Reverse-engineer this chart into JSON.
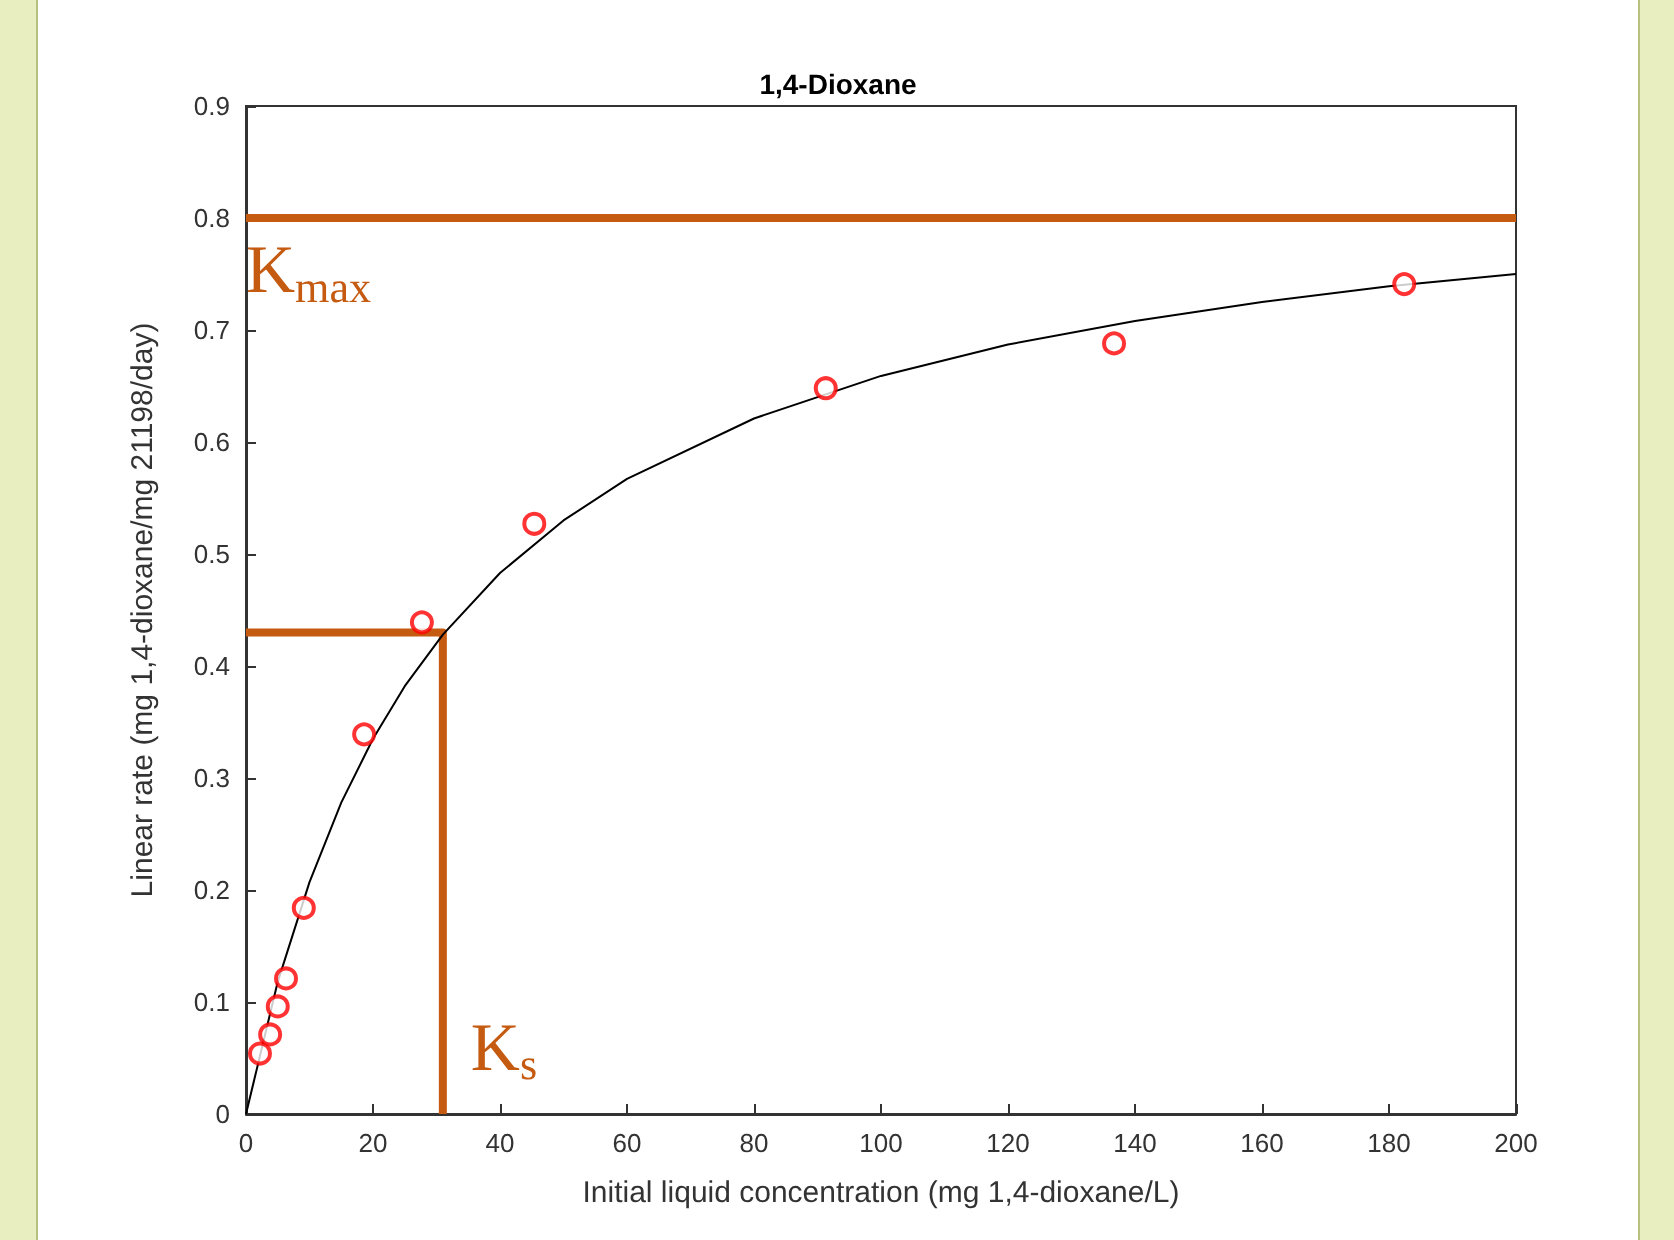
{
  "chart_data": {
    "type": "scatter",
    "title": "1,4-Dioxane",
    "xlabel": "Initial liquid concentration (mg 1,4-dioxane/L)",
    "ylabel": "Linear rate (mg 1,4-dioxane/mg 21198/day)",
    "xlim": [
      0,
      200
    ],
    "xticks": [
      0,
      20,
      40,
      60,
      80,
      100,
      120,
      140,
      160,
      180,
      200
    ],
    "ylim": [
      0,
      0.9
    ],
    "yticks": [
      0,
      0.1,
      0.2,
      0.3,
      0.4,
      0.5,
      0.6,
      0.7,
      0.8,
      0.9
    ],
    "grid": false,
    "series": [
      {
        "marker": "circle",
        "color": "#ff0000",
        "x": [
          2.2,
          3.8,
          5,
          6.3,
          9.1,
          18.6,
          27.7,
          45.4,
          91.3,
          136.7,
          182.4
        ],
        "values": [
          0.054,
          0.071,
          0.096,
          0.121,
          0.184,
          0.339,
          0.439,
          0.527,
          0.648,
          0.688,
          0.741
        ]
      },
      {
        "type": "line",
        "marker": "none",
        "color": "#000000",
        "x": [
          0,
          5,
          10,
          15,
          20,
          25,
          31,
          40,
          50,
          60,
          80,
          100,
          120,
          140,
          160,
          180,
          200
        ],
        "values": [
          0,
          0.118,
          0.207,
          0.278,
          0.335,
          0.382,
          0.428,
          0.483,
          0.53,
          0.567,
          0.621,
          0.659,
          0.687,
          0.708,
          0.725,
          0.739,
          0.75
        ]
      },
      {
        "type": "line",
        "marker": "none",
        "color": "#c55a11",
        "x": [
          0,
          31,
          31
        ],
        "values": [
          0.43,
          0.43,
          0
        ]
      }
    ],
    "ref_lines": [
      {
        "axis": "y",
        "value": 0.8,
        "label": "K$_{max}$",
        "color": "#c55a11"
      }
    ],
    "annotations": [
      {
        "text": "K$_{s}$",
        "x": 31,
        "y": 0
      }
    ]
  }
}
